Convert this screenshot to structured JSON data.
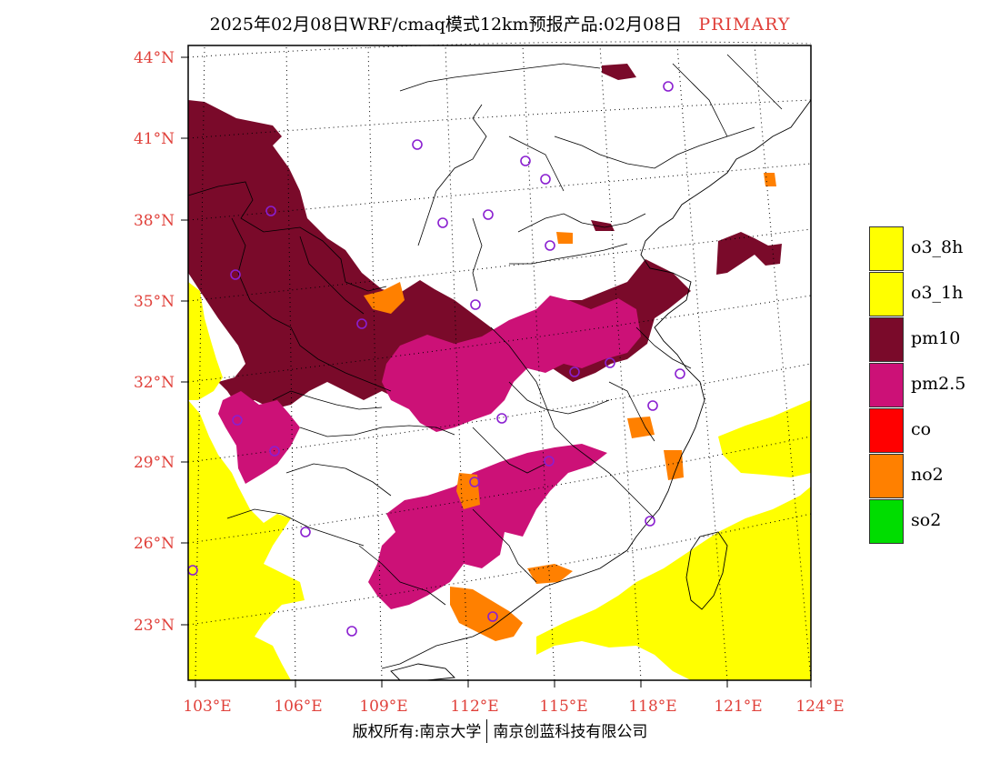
{
  "title": {
    "main": "2025年02月08日WRF/cmaq模式12km预报产品:02月08日",
    "tag": "PRIMARY"
  },
  "footer": {
    "left": "版权所有:南京大学",
    "right": "南京创蓝科技有限公司"
  },
  "axes": {
    "lat_labels": [
      "44°N",
      "41°N",
      "38°N",
      "35°N",
      "32°N",
      "29°N",
      "26°N",
      "23°N"
    ],
    "lon_labels": [
      "103°E",
      "106°E",
      "109°E",
      "112°E",
      "115°E",
      "118°E",
      "121°E",
      "124°E"
    ],
    "label_color": "#e0403a"
  },
  "legend": [
    {
      "label": "o3_8h",
      "color": "#ffff00"
    },
    {
      "label": "o3_1h",
      "color": "#ffff00"
    },
    {
      "label": "pm10",
      "color": "#7a0a2a"
    },
    {
      "label": "pm2.5",
      "color": "#cc1177"
    },
    {
      "label": "co",
      "color": "#ff0000"
    },
    {
      "label": "no2",
      "color": "#ff8000"
    },
    {
      "label": "so2",
      "color": "#00dd00"
    }
  ],
  "map": {
    "pollutant_colors": {
      "pm10": "#7a0a2a",
      "pm25": "#cc1177",
      "no2": "#ff8000",
      "o3": "#ffff00"
    },
    "city_marker_color": "#8a1fd0"
  }
}
